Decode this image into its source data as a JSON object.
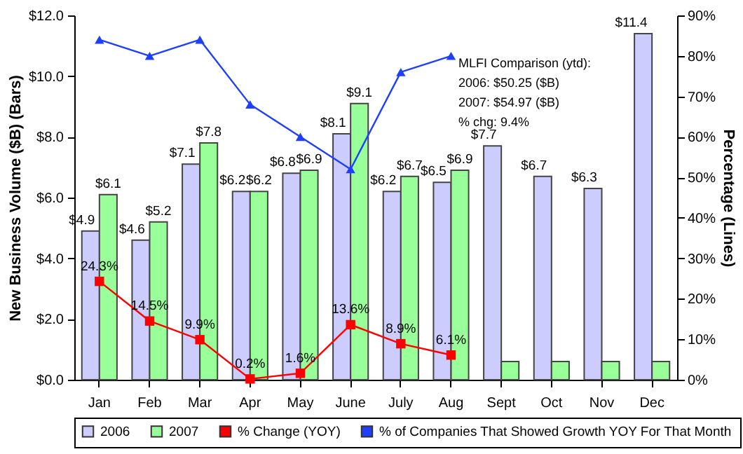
{
  "chart_data": {
    "type": "bar",
    "categories": [
      "Jan",
      "Feb",
      "Mar",
      "Apr",
      "May",
      "June",
      "July",
      "Aug",
      "Sept",
      "Oct",
      "Nov",
      "Dec"
    ],
    "ylabel": "New Business Volume ($B)  (Bars)",
    "y2label": "Percentage (Lines)",
    "ylim": [
      0,
      12
    ],
    "yticks": [
      {
        "value": 0,
        "label": "$0.0"
      },
      {
        "value": 2,
        "label": "$2.0"
      },
      {
        "value": 4,
        "label": "$4.0"
      },
      {
        "value": 6,
        "label": "$6.0"
      },
      {
        "value": 8,
        "label": "$8.0"
      },
      {
        "value": 10,
        "label": "$10.0"
      },
      {
        "value": 12,
        "label": "$12.0"
      }
    ],
    "y2lim": [
      0,
      90
    ],
    "y2ticks": [
      {
        "value": 0,
        "label": "0%"
      },
      {
        "value": 10,
        "label": "10%"
      },
      {
        "value": 20,
        "label": "20%"
      },
      {
        "value": 30,
        "label": "30%"
      },
      {
        "value": 40,
        "label": "40%"
      },
      {
        "value": 50,
        "label": "50%"
      },
      {
        "value": 60,
        "label": "60%"
      },
      {
        "value": 70,
        "label": "70%"
      },
      {
        "value": 80,
        "label": "80%"
      },
      {
        "value": 90,
        "label": "90%"
      }
    ],
    "grid": false,
    "legend": "bottom",
    "annotations": [
      "MLFI Comparison (ytd):",
      "2006: $50.25 ($B)",
      "2007: $54.97 ($B)",
      "% chg:  9.4%"
    ],
    "series": [
      {
        "name": "2006",
        "color": "#ccccff",
        "values": [
          4.9,
          4.6,
          7.1,
          6.2,
          6.8,
          8.1,
          6.2,
          6.5,
          7.7,
          6.7,
          6.3,
          11.4
        ],
        "value_labels": [
          "$4.9",
          "$4.6",
          "$7.1",
          "$6.2",
          "$6.8",
          "$8.1",
          "$6.2",
          "$6.5",
          "$7.7",
          "$6.7",
          "$6.3",
          "$11.4"
        ]
      },
      {
        "name": "2007",
        "color": "#99ff99",
        "values": [
          6.1,
          5.2,
          7.8,
          6.2,
          6.9,
          9.1,
          6.7,
          6.9,
          0.6,
          0.6,
          0.6,
          0.6
        ],
        "value_labels": [
          "$6.1",
          "$5.2",
          "$7.8",
          "$6.2",
          "$6.9",
          "$9.1",
          "$6.7",
          "$6.9",
          null,
          null,
          null,
          null
        ]
      },
      {
        "name": "% Change (YOY)",
        "type": "line",
        "axis": "y2",
        "marker": "square",
        "color": "#ff0000",
        "values": [
          24.3,
          14.5,
          9.9,
          0.2,
          1.6,
          13.6,
          8.9,
          6.1,
          null,
          null,
          null,
          null
        ],
        "value_labels": [
          "24.3%",
          "14.5%",
          "9.9%",
          "0.2%",
          "1.6%",
          "13.6%",
          "8.9%",
          "6.1%",
          null,
          null,
          null,
          null
        ]
      },
      {
        "name": "% of Companies That Showed Growth YOY For That Month",
        "type": "line",
        "axis": "y2",
        "marker": "triangle",
        "color": "#1f3fff",
        "values": [
          84,
          80,
          84,
          68,
          60,
          52,
          76,
          80,
          null,
          null,
          null,
          null
        ]
      }
    ]
  }
}
